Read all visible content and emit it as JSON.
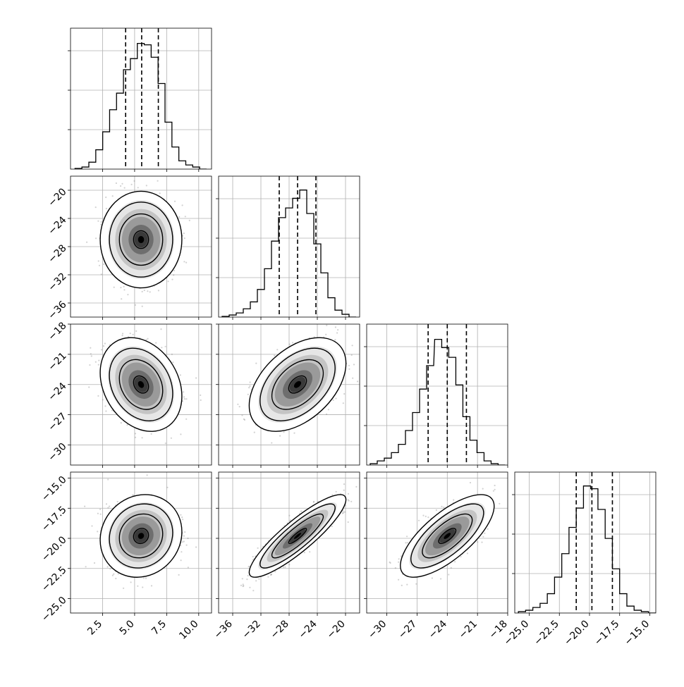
{
  "chart_data": [
    {
      "type": "histogram",
      "panel": "hist-p0",
      "xlim": [
        0.0,
        11.0
      ],
      "ylim": [
        0,
        1.0
      ],
      "bins": [
        0.62,
        1.16,
        1.7,
        2.24,
        2.78,
        3.32,
        3.86,
        4.4,
        4.94,
        5.48,
        6.02,
        6.56,
        7.1,
        7.64,
        8.18,
        8.72,
        9.26,
        9.8,
        10.34
      ],
      "counts": [
        0.005,
        0.015,
        0.05,
        0.14,
        0.27,
        0.43,
        0.55,
        0.72,
        0.8,
        0.91,
        0.9,
        0.81,
        0.62,
        0.34,
        0.16,
        0.06,
        0.03,
        0.015,
        0.0
      ],
      "quantiles": [
        4.3,
        5.55,
        6.85
      ]
    },
    {
      "type": "histogram",
      "panel": "hist-p1",
      "xlim": [
        -38.0,
        -18.0
      ],
      "ylim": [
        0,
        1.0
      ],
      "bins": [
        -37.0,
        -36.0,
        -35.0,
        -34.0,
        -33.0,
        -32.0,
        -31.0,
        -30.0,
        -29.0,
        -28.0,
        -27.0,
        -26.0,
        -25.0,
        -24.0,
        -23.0,
        -22.0,
        -21.0,
        -20.0,
        -19.0
      ],
      "counts": [
        0.005,
        0.015,
        0.03,
        0.06,
        0.11,
        0.2,
        0.35,
        0.55,
        0.72,
        0.79,
        0.86,
        0.92,
        0.75,
        0.53,
        0.32,
        0.14,
        0.05,
        0.02,
        0.0
      ],
      "quantiles": [
        -29.4,
        -26.8,
        -24.2
      ]
    },
    {
      "type": "histogram",
      "panel": "hist-p2",
      "xlim": [
        -32.0,
        -18.0
      ],
      "ylim": [
        0,
        1.0
      ],
      "bins": [
        -31.3,
        -30.6,
        -29.9,
        -29.2,
        -28.5,
        -27.8,
        -27.1,
        -26.4,
        -25.7,
        -24.9,
        -24.2,
        -23.5,
        -22.8,
        -22.1,
        -21.4,
        -20.7,
        -20.0,
        -19.3,
        -18.6
      ],
      "counts": [
        0.01,
        0.03,
        0.05,
        0.09,
        0.15,
        0.25,
        0.38,
        0.55,
        0.72,
        0.91,
        0.85,
        0.78,
        0.58,
        0.35,
        0.18,
        0.09,
        0.03,
        0.01,
        0.0
      ],
      "quantiles": [
        -25.9,
        -24.0,
        -22.1
      ]
    },
    {
      "type": "histogram",
      "panel": "hist-p3",
      "xlim": [
        -26.2,
        -14.5
      ],
      "ylim": [
        0,
        1.0
      ],
      "bins": [
        -25.6,
        -25.0,
        -24.4,
        -23.8,
        -23.2,
        -22.6,
        -22.0,
        -21.4,
        -20.8,
        -20.2,
        -19.6,
        -19.0,
        -18.4,
        -17.8,
        -17.2,
        -16.6,
        -16.0,
        -15.4,
        -14.8
      ],
      "counts": [
        0.01,
        0.02,
        0.04,
        0.07,
        0.14,
        0.26,
        0.43,
        0.62,
        0.76,
        0.92,
        0.9,
        0.75,
        0.54,
        0.32,
        0.14,
        0.05,
        0.02,
        0.01,
        0.0
      ],
      "quantiles": [
        -21.1,
        -19.8,
        -18.1
      ]
    },
    {
      "type": "scatter",
      "panel": "scatter-p1-p0",
      "xlim": [
        0.0,
        11.0
      ],
      "ylim": [
        -38.0,
        -18.0
      ],
      "center": [
        5.5,
        -27.0
      ],
      "sd": [
        1.3,
        2.8
      ],
      "rho": 0.0
    },
    {
      "type": "scatter",
      "panel": "scatter-p2-p0",
      "xlim": [
        0.0,
        11.0
      ],
      "ylim": [
        -32.0,
        -18.0
      ],
      "center": [
        5.5,
        -24.0
      ],
      "sd": [
        1.3,
        1.9
      ],
      "rho": -0.25
    },
    {
      "type": "scatter",
      "panel": "scatter-p2-p1",
      "xlim": [
        -38.0,
        -18.0
      ],
      "ylim": [
        -32.0,
        -18.0
      ],
      "center": [
        -26.8,
        -24.0
      ],
      "sd": [
        2.8,
        1.9
      ],
      "rho": 0.45
    },
    {
      "type": "scatter",
      "panel": "scatter-p3-p0",
      "xlim": [
        0.0,
        11.0
      ],
      "ylim": [
        -26.2,
        -14.5
      ],
      "center": [
        5.5,
        -19.8
      ],
      "sd": [
        1.3,
        1.4
      ],
      "rho": 0.1
    },
    {
      "type": "scatter",
      "panel": "scatter-p3-p1",
      "xlim": [
        -38.0,
        -18.0
      ],
      "ylim": [
        -26.2,
        -14.5
      ],
      "center": [
        -26.8,
        -19.8
      ],
      "sd": [
        2.8,
        1.4
      ],
      "rho": 0.88
    },
    {
      "type": "scatter",
      "panel": "scatter-p3-p2",
      "xlim": [
        -32.0,
        -18.0
      ],
      "ylim": [
        -26.2,
        -14.5
      ],
      "center": [
        -24.0,
        -19.8
      ],
      "sd": [
        1.9,
        1.4
      ],
      "rho": 0.72
    }
  ],
  "ticks": {
    "p0": [
      "2.5",
      "5.0",
      "7.5",
      "10.0"
    ],
    "p1": [
      "−36",
      "−32",
      "−28",
      "−24",
      "−20"
    ],
    "p2": [
      "−30",
      "−27",
      "−24",
      "−21",
      "−18"
    ],
    "p3": [
      "−25.0",
      "−22.5",
      "−20.0",
      "−17.5",
      "−15.0"
    ]
  },
  "tick_values": {
    "p0": [
      2.5,
      5.0,
      7.5,
      10.0
    ],
    "p1": [
      -36,
      -32,
      -28,
      -24,
      -20
    ],
    "p2": [
      -30,
      -27,
      -24,
      -21,
      -18
    ],
    "p3": [
      -25.0,
      -22.5,
      -20.0,
      -17.5,
      -15.0
    ]
  },
  "colors": {
    "hist": "#000000",
    "points": "#7f7f7f",
    "grid": "#b0b0b0",
    "quantile": "#000000"
  }
}
